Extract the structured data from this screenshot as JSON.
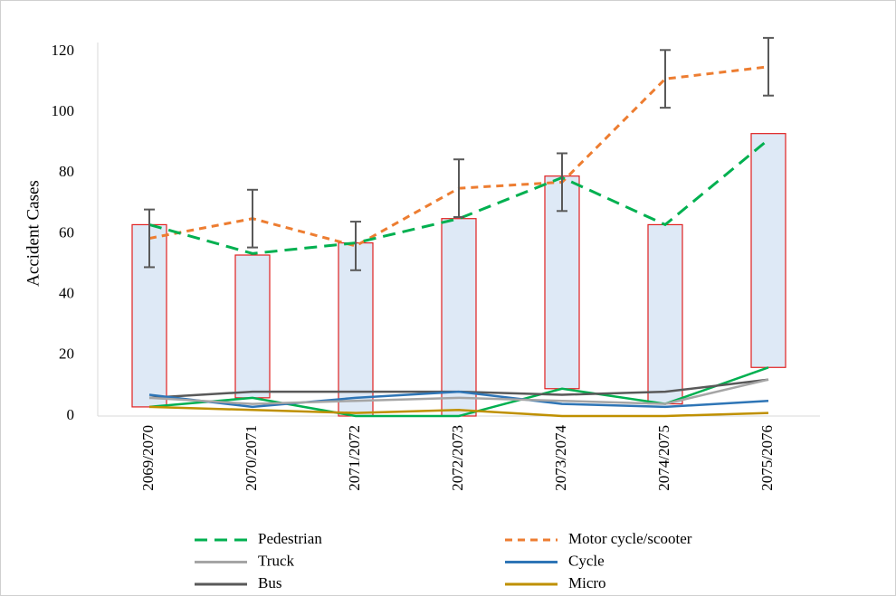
{
  "chart_data": {
    "type": "line",
    "y_label": "Accident   Cases",
    "categories": [
      "2069/2070",
      "2070/2071",
      "2071/2072",
      "2072/2073",
      "2073/2074",
      "2074/2075",
      "2075/2076"
    ],
    "ylim": [
      0,
      120
    ],
    "yticks": [
      0,
      20,
      40,
      60,
      80,
      100,
      120
    ],
    "grid": false,
    "boxes": {
      "low": [
        3,
        6,
        0,
        0,
        9,
        4,
        16
      ],
      "high": [
        63,
        53,
        57,
        65,
        79,
        63,
        93
      ],
      "fill": "#dee9f6",
      "stroke": "#e02020",
      "line_color": "#00b050"
    },
    "series": [
      {
        "name": "Pedestrian",
        "color": "#00b050",
        "line_style": "long-dash",
        "values": [
          63,
          53.5,
          57,
          65,
          78.5,
          63,
          91
        ]
      },
      {
        "name": "Motor cycle/scooter",
        "color": "#ed7d31",
        "line_style": "dash",
        "values": [
          58.5,
          65,
          56,
          75,
          77,
          111,
          115
        ],
        "errors": [
          9.5,
          9.5,
          8,
          9.5,
          9.5,
          9.5,
          9.5
        ]
      },
      {
        "name": "Truck",
        "color": "#a5a5a5",
        "line_style": "solid",
        "values": [
          6,
          4,
          5,
          6,
          5,
          4,
          12
        ]
      },
      {
        "name": "Cycle",
        "color": "#2e75b6",
        "line_style": "solid",
        "values": [
          7,
          3,
          6,
          8,
          4,
          3,
          5
        ]
      },
      {
        "name": "Bus",
        "color": "#595959",
        "line_style": "solid",
        "values": [
          6,
          8,
          8,
          8,
          7,
          8,
          12
        ]
      },
      {
        "name": "Micro",
        "color": "#bf9000",
        "line_style": "solid",
        "values": [
          3,
          2,
          1,
          2,
          0,
          0,
          1
        ]
      }
    ]
  }
}
